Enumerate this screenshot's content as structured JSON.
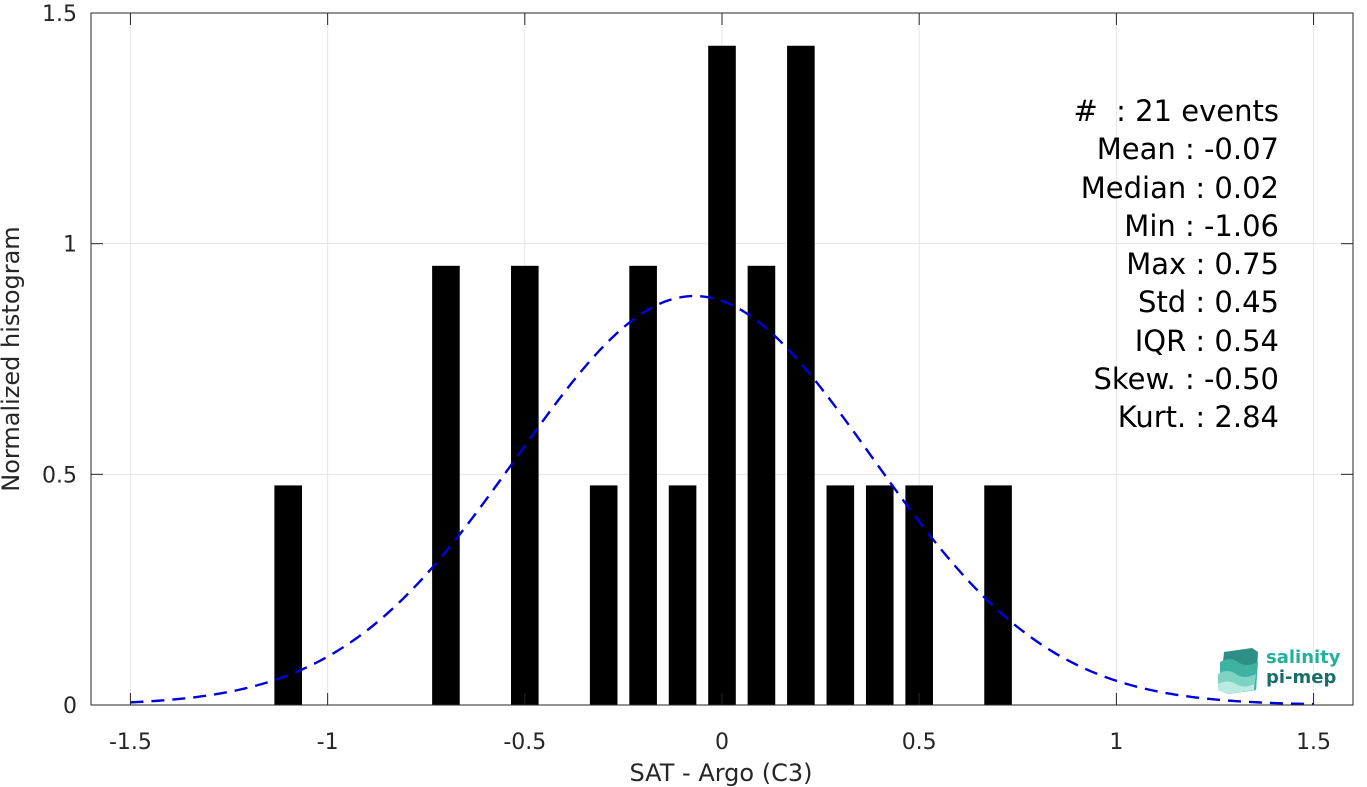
{
  "chart_data": {
    "type": "bar",
    "xlabel": "SAT - Argo (C3)",
    "ylabel": "Normalized histogram",
    "xlim": [
      -1.6,
      1.6
    ],
    "ylim": [
      0,
      1.5
    ],
    "xticks": [
      -1.5,
      -1,
      -0.5,
      0,
      0.5,
      1,
      1.5
    ],
    "xtick_labels": [
      "-1.5",
      "-1",
      "-0.5",
      "0",
      "0.5",
      "1",
      "1.5"
    ],
    "yticks": [
      0,
      0.5,
      1,
      1.5
    ],
    "ytick_labels": [
      "0",
      "0.5",
      "1",
      "1.5"
    ],
    "grid": true,
    "bar_width": 0.07,
    "bars": [
      {
        "x": -1.1,
        "value": 0.476
      },
      {
        "x": -0.7,
        "value": 0.952
      },
      {
        "x": -0.5,
        "value": 0.952
      },
      {
        "x": -0.3,
        "value": 0.476
      },
      {
        "x": -0.2,
        "value": 0.952
      },
      {
        "x": -0.1,
        "value": 0.476
      },
      {
        "x": 0.0,
        "value": 1.429
      },
      {
        "x": 0.1,
        "value": 0.952
      },
      {
        "x": 0.2,
        "value": 1.429
      },
      {
        "x": 0.3,
        "value": 0.476
      },
      {
        "x": 0.4,
        "value": 0.476
      },
      {
        "x": 0.5,
        "value": 0.476
      },
      {
        "x": 0.7,
        "value": 0.476
      }
    ],
    "fit_curve": {
      "style": "dashed",
      "color": "#0000dd",
      "mean": -0.07,
      "std": 0.45,
      "x_range": [
        -1.5,
        1.5
      ]
    },
    "bar_color": "#000000"
  },
  "stats": [
    "#  : 21 events",
    "Mean : -0.07",
    "Median : 0.02",
    "Min : -1.06",
    "Max : 0.75",
    "Std : 0.45",
    "IQR : 0.54",
    "Skew. : -0.50",
    "Kurt. : 2.84"
  ],
  "logo": {
    "line1": "salinity",
    "line2": "pi-mep"
  }
}
